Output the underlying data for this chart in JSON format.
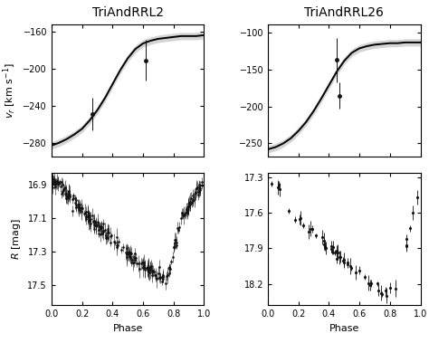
{
  "title_left": "TriAndRRL2",
  "title_right": "TriAndRRL26",
  "xlabel": "Phase",
  "ylabel_rv": "$v_r$ [km s$^{-1}$]",
  "ylabel_mag": "$R$ [mag]",
  "rv_left": {
    "ylim": [
      -295,
      -152
    ],
    "yticks": [
      -280,
      -240,
      -200,
      -160
    ],
    "curve_phase": [
      0.0,
      0.05,
      0.1,
      0.15,
      0.2,
      0.25,
      0.3,
      0.35,
      0.4,
      0.45,
      0.5,
      0.55,
      0.6,
      0.65,
      0.7,
      0.75,
      0.8,
      0.85,
      0.9,
      0.95,
      1.0
    ],
    "curve_y": [
      -283,
      -280,
      -276,
      -271,
      -265,
      -256,
      -245,
      -232,
      -217,
      -202,
      -189,
      -179,
      -173,
      -170,
      -168,
      -167,
      -166,
      -165,
      -165,
      -165,
      -164
    ],
    "shade_upper": [
      -279,
      -276,
      -272,
      -267,
      -261,
      -252,
      -241,
      -228,
      -213,
      -198,
      -185,
      -175,
      -169,
      -166,
      -164,
      -163,
      -162,
      -161,
      -161,
      -161,
      -160
    ],
    "shade_lower": [
      -287,
      -284,
      -280,
      -275,
      -269,
      -260,
      -249,
      -236,
      -221,
      -206,
      -193,
      -183,
      -177,
      -174,
      -172,
      -171,
      -170,
      -169,
      -169,
      -169,
      -168
    ],
    "obs_phase": [
      0.27,
      0.62
    ],
    "obs_rv": [
      -249,
      -191
    ],
    "obs_err": [
      18,
      22
    ]
  },
  "rv_right": {
    "ylim": [
      -268,
      -88
    ],
    "yticks": [
      -250,
      -200,
      -150,
      -100
    ],
    "curve_phase": [
      0.0,
      0.05,
      0.1,
      0.15,
      0.2,
      0.25,
      0.3,
      0.35,
      0.4,
      0.45,
      0.5,
      0.55,
      0.6,
      0.65,
      0.7,
      0.75,
      0.8,
      0.85,
      0.9,
      0.95,
      1.0
    ],
    "curve_y": [
      -258,
      -255,
      -250,
      -243,
      -233,
      -221,
      -206,
      -189,
      -171,
      -153,
      -138,
      -127,
      -121,
      -118,
      -116,
      -115,
      -114,
      -114,
      -113,
      -113,
      -113
    ],
    "shade_upper": [
      -253,
      -250,
      -245,
      -238,
      -228,
      -216,
      -201,
      -184,
      -166,
      -148,
      -133,
      -122,
      -116,
      -113,
      -111,
      -110,
      -109,
      -109,
      -108,
      -108,
      -108
    ],
    "shade_lower": [
      -263,
      -260,
      -255,
      -248,
      -238,
      -226,
      -211,
      -194,
      -176,
      -158,
      -143,
      -132,
      -126,
      -123,
      -121,
      -120,
      -119,
      -119,
      -118,
      -118,
      -118
    ],
    "obs_phase": [
      0.45,
      0.47
    ],
    "obs_rv": [
      -137,
      -185
    ],
    "obs_err": [
      30,
      18
    ]
  },
  "lc_left": {
    "ylim": [
      17.62,
      16.83
    ],
    "yticks": [
      16.9,
      17.1,
      17.3,
      17.5
    ],
    "num_points": 250,
    "seed": 42
  },
  "lc_right": {
    "ylim": [
      18.38,
      17.26
    ],
    "yticks": [
      17.3,
      17.6,
      17.9,
      18.2
    ],
    "num_points": 55,
    "seed": 7
  },
  "background_color": "#ffffff",
  "line_color": "#000000",
  "shade_color": "#aaaaaa",
  "point_color": "#111111",
  "font_size_title": 10,
  "font_size_label": 8,
  "font_size_tick": 7
}
